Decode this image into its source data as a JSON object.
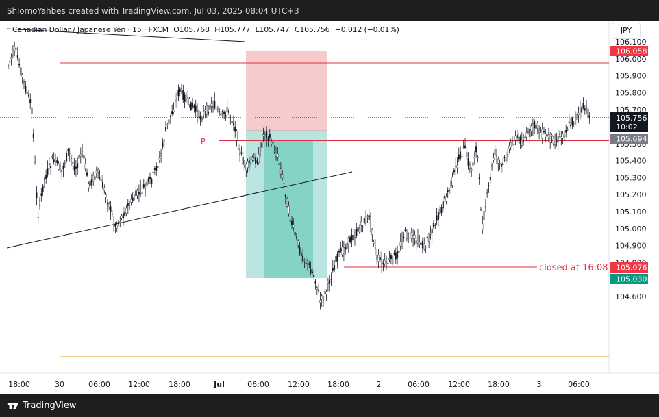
{
  "header": {
    "caption": "ShlomoYahbes created with TradingView.com, Jul 03, 2025 08:04 UTC+3"
  },
  "legend": {
    "symbol": "Canadian Dollar / Japanese Yen · 15 · FXCM",
    "open": "O105.768",
    "high": "H105.777",
    "low": "L105.747",
    "close": "C105.756",
    "change": "−0.012 (−0.01%)"
  },
  "currency_button": "JPY",
  "price_axis": {
    "ticks": [
      "106.100",
      "106.000",
      "105.900",
      "105.800",
      "105.700",
      "105.600",
      "105.500",
      "105.400",
      "105.300",
      "105.200",
      "105.100",
      "105.000",
      "104.900",
      "104.800",
      "104.700",
      "104.600"
    ],
    "labels": {
      "stop": "106.058",
      "last_price": "105.756",
      "countdown": "10:02",
      "entry": "105.694",
      "close_level": "105.076",
      "target": "105.030"
    }
  },
  "time_axis": {
    "ticks": [
      "18:00",
      "30",
      "06:00",
      "12:00",
      "18:00",
      "Jul",
      "06:00",
      "12:00",
      "18:00",
      "2",
      "06:00",
      "12:00",
      "18:00",
      "3",
      "06:00"
    ]
  },
  "annotations": {
    "p_marker": "P",
    "closed_label": "closed at 16:08"
  },
  "footer": {
    "brand": "TradingView"
  },
  "colors": {
    "stop_zone": "#f7c8c8",
    "profit_zone": "#b6e3dd",
    "profit_fill": "#7fcfc4",
    "red_line": "#e0303b",
    "orange_line": "#d4a017",
    "badge_teal": "#089981",
    "badge_red": "#f23645"
  }
}
